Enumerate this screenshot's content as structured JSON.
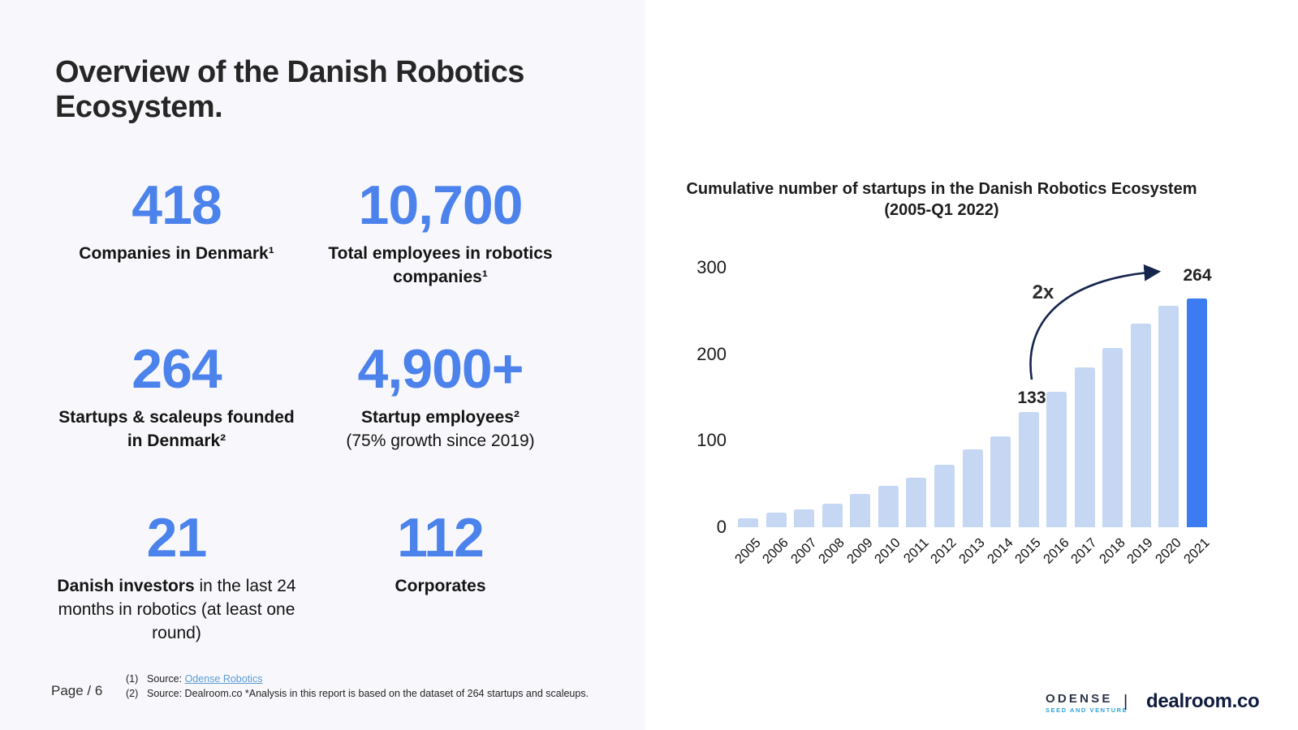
{
  "slide": {
    "title": "Overview of the Danish Robotics Ecosystem.",
    "page_label": "Page / 6",
    "stats": [
      {
        "value": "418",
        "bold": "Companies in Denmark¹",
        "rest": "",
        "sublabel": ""
      },
      {
        "value": "10,700",
        "bold": "Total employees in robotics companies¹",
        "rest": "",
        "sublabel": ""
      },
      {
        "value": "264",
        "bold": "Startups & scaleups founded in Denmark²",
        "rest": "",
        "sublabel": ""
      },
      {
        "value": "4,900+",
        "bold": "Startup employees²",
        "rest": "",
        "sublabel": "(75% growth since 2019)"
      },
      {
        "value": "21",
        "bold": "Danish investors",
        "rest": " in the last 24 months in robotics (at least one round)",
        "sublabel": ""
      },
      {
        "value": "112",
        "bold": "Corporates",
        "rest": "",
        "sublabel": ""
      }
    ],
    "footnotes": {
      "f1_prefix": "(1)",
      "f1_text": "Source: ",
      "f1_link": "Odense Robotics",
      "f2_prefix": "(2)",
      "f2_text": "Source: Dealroom.co *Analysis in this report is based on the dataset of 264 startups and scaleups."
    },
    "logos": {
      "odense_top": "ODENSE",
      "odense_sub": "SEED AND VENTURE",
      "separator": "|",
      "dealroom": "dealroom.co"
    },
    "accent_blue": "#4b82eb"
  },
  "chart_data": {
    "type": "bar",
    "title": "Cumulative number of startups in the Danish Robotics Ecosystem",
    "subtitle": "(2005-Q1 2022)",
    "categories": [
      "2005",
      "2006",
      "2007",
      "2008",
      "2009",
      "2010",
      "2011",
      "2012",
      "2013",
      "2014",
      "2015",
      "2016",
      "2017",
      "2018",
      "2019",
      "2020",
      "2021"
    ],
    "values": [
      10,
      17,
      21,
      27,
      38,
      48,
      57,
      72,
      90,
      105,
      133,
      157,
      185,
      207,
      235,
      256,
      264
    ],
    "ylim": [
      0,
      300
    ],
    "yticks": [
      0,
      100,
      200,
      300
    ],
    "grid": false,
    "legend": "none",
    "bar_color": "#c5d7f3",
    "highlight_bar": "2021",
    "highlight_color": "#3c7bf0",
    "annotations": {
      "value_2015": "133",
      "value_2021": "264",
      "growth_label": "2x",
      "arrow_color": "#16254e"
    }
  }
}
